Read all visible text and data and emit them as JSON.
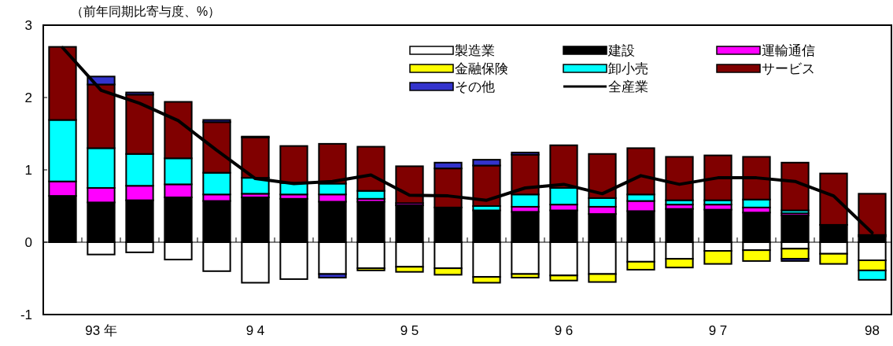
{
  "chart_data": {
    "type": "bar",
    "stacked": true,
    "ylabel": "（前年同期比寄与度、%）",
    "ylim": [
      -1,
      3
    ],
    "yticks": [
      -1,
      0,
      1,
      2,
      3
    ],
    "legend": "top right",
    "categories": [
      null,
      "93 年",
      null,
      null,
      null,
      "9 4",
      null,
      null,
      null,
      "9 5",
      null,
      null,
      null,
      "9 6",
      null,
      null,
      null,
      "9 7",
      null,
      null,
      null,
      "98"
    ],
    "series": [
      {
        "name": "製造業",
        "color": "#ffffff",
        "values": [
          0,
          -0.17,
          -0.14,
          -0.24,
          -0.4,
          -0.56,
          -0.51,
          -0.44,
          -0.36,
          -0.34,
          -0.36,
          -0.48,
          -0.44,
          -0.46,
          -0.44,
          -0.27,
          -0.23,
          -0.12,
          -0.11,
          -0.09,
          -0.16,
          -0.25
        ]
      },
      {
        "name": "建設",
        "color": "#000000",
        "values": [
          0.64,
          0.55,
          0.58,
          0.62,
          0.57,
          0.62,
          0.6,
          0.56,
          0.56,
          0.51,
          0.48,
          0.44,
          0.42,
          0.44,
          0.39,
          0.43,
          0.46,
          0.45,
          0.41,
          0.37,
          0.24,
          0.08
        ]
      },
      {
        "name": "運輸通信",
        "color": "#ff00ff",
        "values": [
          0.2,
          0.2,
          0.2,
          0.18,
          0.09,
          0.05,
          0.06,
          0.1,
          0.04,
          0.03,
          0,
          0,
          0.07,
          0.08,
          0.1,
          0.14,
          0.06,
          0.07,
          0.07,
          0.03,
          0,
          0.02
        ]
      },
      {
        "name": "金融保険",
        "color": "#ffff00",
        "values": [
          0,
          0,
          0,
          0,
          0,
          0,
          0,
          0,
          -0.03,
          -0.07,
          -0.09,
          -0.08,
          -0.05,
          -0.07,
          -0.11,
          -0.11,
          -0.12,
          -0.18,
          -0.15,
          -0.14,
          -0.14,
          -0.14
        ]
      },
      {
        "name": "卸小売",
        "color": "#00ffff",
        "values": [
          0.85,
          0.55,
          0.44,
          0.36,
          0.3,
          0.22,
          0.16,
          0.15,
          0.11,
          0,
          0,
          0.06,
          0.17,
          0.23,
          0.12,
          0.09,
          0.06,
          0.06,
          0.11,
          0.04,
          0,
          -0.13
        ]
      },
      {
        "name": "サービス",
        "color": "#800000",
        "values": [
          1.01,
          0.88,
          0.82,
          0.78,
          0.7,
          0.56,
          0.51,
          0.55,
          0.61,
          0.51,
          0.54,
          0.56,
          0.55,
          0.59,
          0.61,
          0.64,
          0.6,
          0.62,
          0.59,
          0.66,
          0.71,
          0.57
        ]
      },
      {
        "name": "その他",
        "color": "#3333cc",
        "values": [
          0,
          0.11,
          0.03,
          0,
          0.03,
          0.01,
          0,
          -0.05,
          0,
          0,
          0.08,
          0.08,
          0.03,
          0,
          0,
          0,
          0,
          0,
          0,
          -0.03,
          0,
          0
        ]
      },
      {
        "name": "全産業",
        "color": "#000000",
        "type": "line",
        "values": [
          2.69,
          2.1,
          1.92,
          1.68,
          1.27,
          0.88,
          0.81,
          0.84,
          0.93,
          0.65,
          0.64,
          0.58,
          0.75,
          0.8,
          0.67,
          0.92,
          0.8,
          0.89,
          0.89,
          0.84,
          0.64,
          0.13
        ]
      }
    ]
  }
}
